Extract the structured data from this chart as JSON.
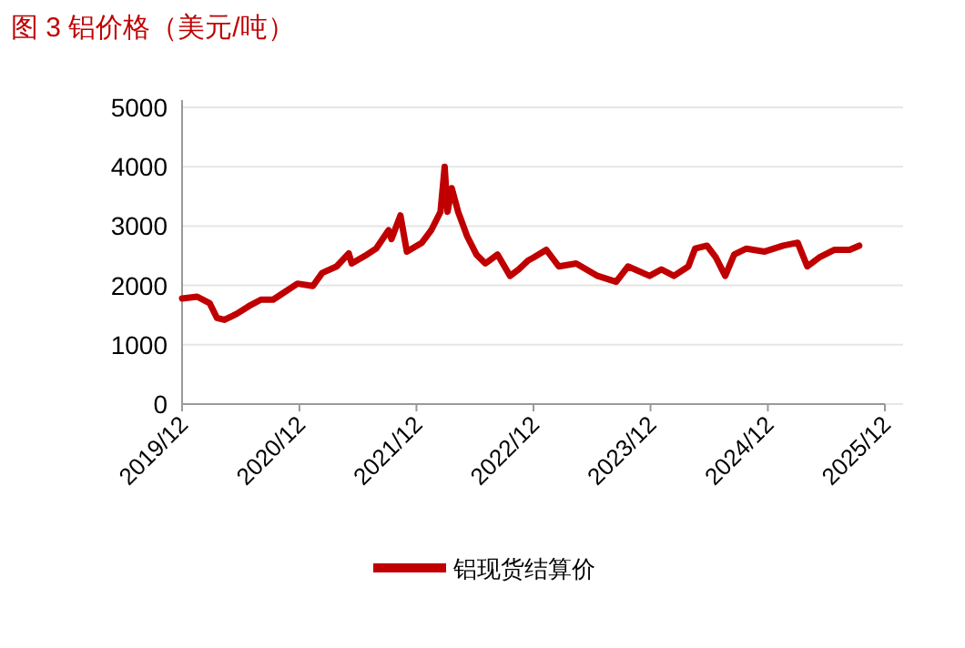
{
  "chart_data": {
    "type": "line",
    "title": "图 3  铝价格（美元/吨）",
    "x": [
      "2019-12-01",
      "2020-01-17",
      "2020-02-25",
      "2020-03-19",
      "2020-04-11",
      "2020-05-19",
      "2020-06-26",
      "2020-08-03",
      "2020-09-10",
      "2020-10-08",
      "2020-11-25",
      "2021-01-12",
      "2021-02-10",
      "2021-03-27",
      "2021-05-04",
      "2021-05-13",
      "2021-06-30",
      "2021-07-28",
      "2021-09-05",
      "2021-09-14",
      "2021-10-12",
      "2021-11-01",
      "2021-12-18",
      "2022-01-16",
      "2022-02-14",
      "2022-02-27",
      "2022-03-08",
      "2022-03-21",
      "2022-04-10",
      "2022-05-08",
      "2022-06-06",
      "2022-07-04",
      "2022-08-11",
      "2022-09-19",
      "2022-10-16",
      "2022-11-14",
      "2022-12-01",
      "2023-01-10",
      "2023-02-18",
      "2023-04-13",
      "2023-06-19",
      "2023-08-16",
      "2023-09-22",
      "2023-11-28",
      "2024-01-04",
      "2024-02-12",
      "2024-03-28",
      "2024-04-18",
      "2024-05-25",
      "2024-06-22",
      "2024-07-21",
      "2024-08-18",
      "2024-09-25",
      "2024-11-21",
      "2025-01-18",
      "2025-03-04",
      "2025-04-03",
      "2025-05-10",
      "2025-06-27",
      "2025-08-13",
      "2025-09-12"
    ],
    "series": [
      {
        "name": "铝现货结算价",
        "color": "#c00000",
        "values": [
          1780,
          1810,
          1700,
          1450,
          1420,
          1520,
          1650,
          1760,
          1760,
          1860,
          2030,
          1990,
          2210,
          2320,
          2540,
          2370,
          2520,
          2620,
          2930,
          2780,
          3180,
          2570,
          2720,
          2930,
          3240,
          4000,
          3240,
          3640,
          3240,
          2830,
          2520,
          2370,
          2520,
          2160,
          2270,
          2420,
          2470,
          2600,
          2320,
          2370,
          2160,
          2060,
          2320,
          2160,
          2270,
          2160,
          2320,
          2620,
          2670,
          2470,
          2160,
          2520,
          2620,
          2570,
          2670,
          2720,
          2320,
          2470,
          2600,
          2600,
          2670
        ]
      }
    ],
    "xlim": [
      "2019-12-01",
      "2025-12-01"
    ],
    "xticks": [
      {
        "value": "2019-12-01",
        "label": "2019/12"
      },
      {
        "value": "2020-12-01",
        "label": "2020/12"
      },
      {
        "value": "2021-12-01",
        "label": "2021/12"
      },
      {
        "value": "2022-12-01",
        "label": "2022/12"
      },
      {
        "value": "2023-12-01",
        "label": "2023/12"
      },
      {
        "value": "2024-12-01",
        "label": "2024/12"
      },
      {
        "value": "2025-12-01",
        "label": "2025/12"
      }
    ],
    "ylim": [
      0,
      5000
    ],
    "yticks": [
      0,
      1000,
      2000,
      3000,
      4000,
      5000
    ],
    "grid": "y",
    "legend": "bottom",
    "marker": "none",
    "line_style": "solid"
  }
}
